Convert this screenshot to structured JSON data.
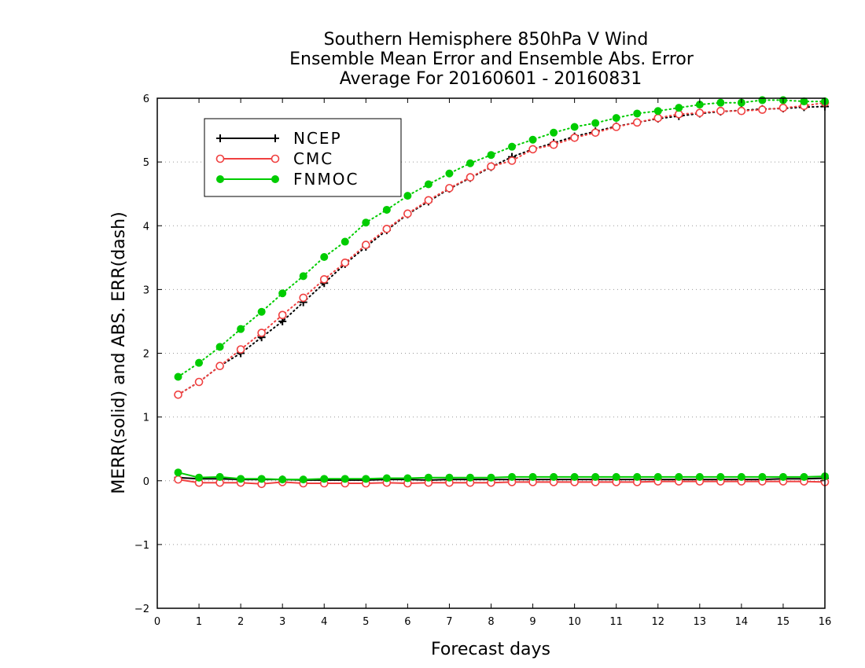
{
  "chart_data": {
    "type": "line",
    "title": [
      "Southern Hemisphere 850hPa V Wind",
      "Ensemble Mean Error and Ensemble Abs. Error",
      "Average For 20160601 - 20160831"
    ],
    "xlabel": "Forecast days",
    "ylabel": "MERR(solid) and ABS. ERR(dash)",
    "xlim": [
      0,
      16
    ],
    "ylim": [
      -2,
      6
    ],
    "xticks": [
      "0",
      "1",
      "2",
      "3",
      "4",
      "5",
      "6",
      "7",
      "8",
      "9",
      "10",
      "11",
      "12",
      "13",
      "14",
      "15",
      "16"
    ],
    "yticks": [
      "-2",
      "-1",
      "0",
      "1",
      "2",
      "3",
      "4",
      "5",
      "6"
    ],
    "grid": "horizontal dotted",
    "legend_position": "top-left",
    "x": [
      0.5,
      1,
      1.5,
      2,
      2.5,
      3,
      3.5,
      4,
      4.5,
      5,
      5.5,
      6,
      6.5,
      7,
      7.5,
      8,
      8.5,
      9,
      9.5,
      10,
      10.5,
      11,
      11.5,
      12,
      12.5,
      13,
      13.5,
      14,
      14.5,
      15,
      15.5,
      16
    ],
    "series": [
      {
        "name": "NCEP",
        "color": "#000000",
        "marker": "plus",
        "merr": [
          0.05,
          0.03,
          0.03,
          0.02,
          0.02,
          0.02,
          0.01,
          0.01,
          0.01,
          0.01,
          0.02,
          0.02,
          0.01,
          0.02,
          0.02,
          0.02,
          0.02,
          0.02,
          0.02,
          0.02,
          0.02,
          0.02,
          0.02,
          0.02,
          0.02,
          0.02,
          0.02,
          0.02,
          0.02,
          0.03,
          0.03,
          0.04
        ],
        "abs_err": [
          1.35,
          1.55,
          1.8,
          2.0,
          2.25,
          2.5,
          2.8,
          3.1,
          3.4,
          3.67,
          3.93,
          4.18,
          4.38,
          4.58,
          4.75,
          4.92,
          5.08,
          5.2,
          5.3,
          5.4,
          5.48,
          5.56,
          5.62,
          5.68,
          5.72,
          5.76,
          5.79,
          5.81,
          5.83,
          5.84,
          5.86,
          5.87
        ]
      },
      {
        "name": "CMC",
        "color": "#f04040",
        "marker": "open-circle",
        "merr": [
          0.02,
          -0.03,
          -0.03,
          -0.03,
          -0.05,
          -0.02,
          -0.04,
          -0.04,
          -0.04,
          -0.04,
          -0.03,
          -0.04,
          -0.03,
          -0.03,
          -0.03,
          -0.03,
          -0.02,
          -0.02,
          -0.02,
          -0.02,
          -0.02,
          -0.02,
          -0.02,
          -0.01,
          -0.01,
          -0.01,
          -0.01,
          -0.01,
          -0.01,
          -0.01,
          -0.01,
          -0.02
        ],
        "abs_err": [
          1.35,
          1.55,
          1.8,
          2.06,
          2.32,
          2.6,
          2.87,
          3.16,
          3.42,
          3.7,
          3.95,
          4.19,
          4.4,
          4.59,
          4.76,
          4.93,
          5.02,
          5.2,
          5.27,
          5.38,
          5.46,
          5.55,
          5.62,
          5.69,
          5.75,
          5.77,
          5.8,
          5.8,
          5.82,
          5.85,
          5.88,
          5.93
        ]
      },
      {
        "name": "FNMOC",
        "color": "#00cc00",
        "marker": "filled-circle",
        "merr": [
          0.13,
          0.05,
          0.06,
          0.03,
          0.03,
          0.02,
          0.02,
          0.03,
          0.03,
          0.03,
          0.04,
          0.04,
          0.05,
          0.05,
          0.05,
          0.05,
          0.06,
          0.06,
          0.06,
          0.06,
          0.06,
          0.06,
          0.06,
          0.06,
          0.06,
          0.06,
          0.06,
          0.06,
          0.06,
          0.06,
          0.06,
          0.07
        ],
        "abs_err": [
          1.63,
          1.85,
          2.1,
          2.38,
          2.65,
          2.94,
          3.21,
          3.51,
          3.75,
          4.05,
          4.25,
          4.47,
          4.65,
          4.82,
          4.98,
          5.11,
          5.24,
          5.35,
          5.46,
          5.55,
          5.61,
          5.69,
          5.76,
          5.8,
          5.85,
          5.9,
          5.93,
          5.93,
          5.97,
          5.97,
          5.95,
          5.95
        ]
      }
    ]
  }
}
